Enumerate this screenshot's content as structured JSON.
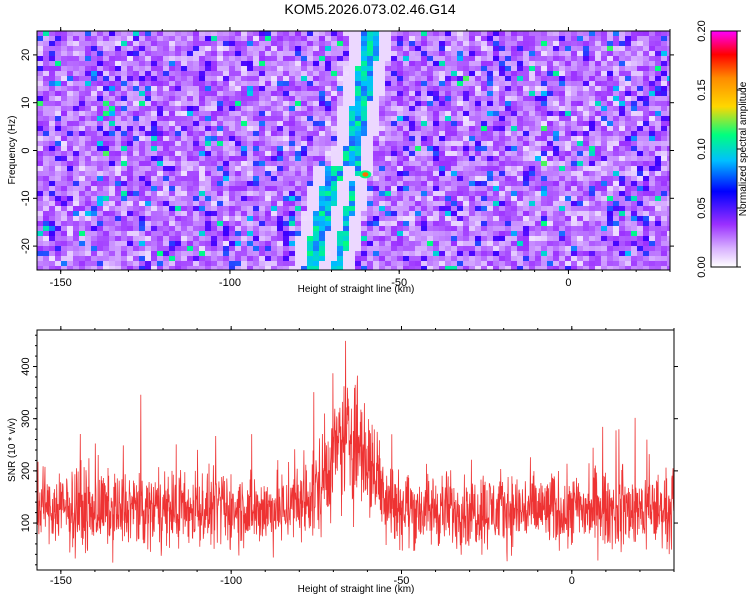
{
  "title": "KOM5.2026.073.02.46.G14",
  "chart_data": [
    {
      "type": "heatmap",
      "xlabel": "Height of straight line (km)",
      "ylabel": "Frequency (Hz)",
      "xlim": [
        -157,
        30
      ],
      "ylim": [
        -25,
        25
      ],
      "x_ticks": [
        -150,
        -100,
        -50,
        0
      ],
      "y_ticks": [
        -20,
        -10,
        0,
        10,
        20
      ],
      "x_tick_labels": [
        "-150",
        "-100",
        "-50",
        "0"
      ],
      "y_tick_labels": [
        "-20",
        "-10",
        "0",
        "10",
        "20"
      ],
      "colorbar": {
        "label": "Normalized spectral amplitude",
        "range": [
          0,
          0.2
        ],
        "ticks": [
          0,
          0.05,
          0.1,
          0.15,
          0.2
        ],
        "tick_labels": [
          "0.00",
          "0.05",
          "0.10",
          "0.15",
          "0.20"
        ],
        "colors": [
          "#ffffff",
          "#9b30ff",
          "#0000ff",
          "#00bfff",
          "#00ff7f",
          "#ffd700",
          "#ff8c00",
          "#ff0000",
          "#ff00ff"
        ]
      },
      "features": [
        {
          "kind": "diagonal streak",
          "x_start": -69,
          "y_start": -25,
          "x_end": -58,
          "y_end": 25
        },
        {
          "kind": "diagonal streak",
          "x_start": -76,
          "y_start": -25,
          "x_end": -69,
          "y_end": -3
        },
        {
          "kind": "peak",
          "x": -60,
          "y": -5,
          "amplitude": 0.19
        }
      ]
    },
    {
      "type": "line",
      "xlabel": "Height of straight line (km)",
      "ylabel": "SNR (10 * v/v)",
      "xlim": [
        -157,
        30
      ],
      "ylim": [
        10,
        470
      ],
      "x_ticks": [
        -150,
        -100,
        -50,
        0
      ],
      "y_ticks": [
        100,
        200,
        300,
        400
      ],
      "x_tick_labels": [
        "-150",
        "-100",
        "-50",
        "0"
      ],
      "y_tick_labels": [
        "100",
        "200",
        "300",
        "400"
      ],
      "color": "#ee3333",
      "baseline_mean": 125,
      "peak_x": -65,
      "peak_value": 470,
      "peak_mean": 260,
      "peak_width_km": 9
    }
  ]
}
